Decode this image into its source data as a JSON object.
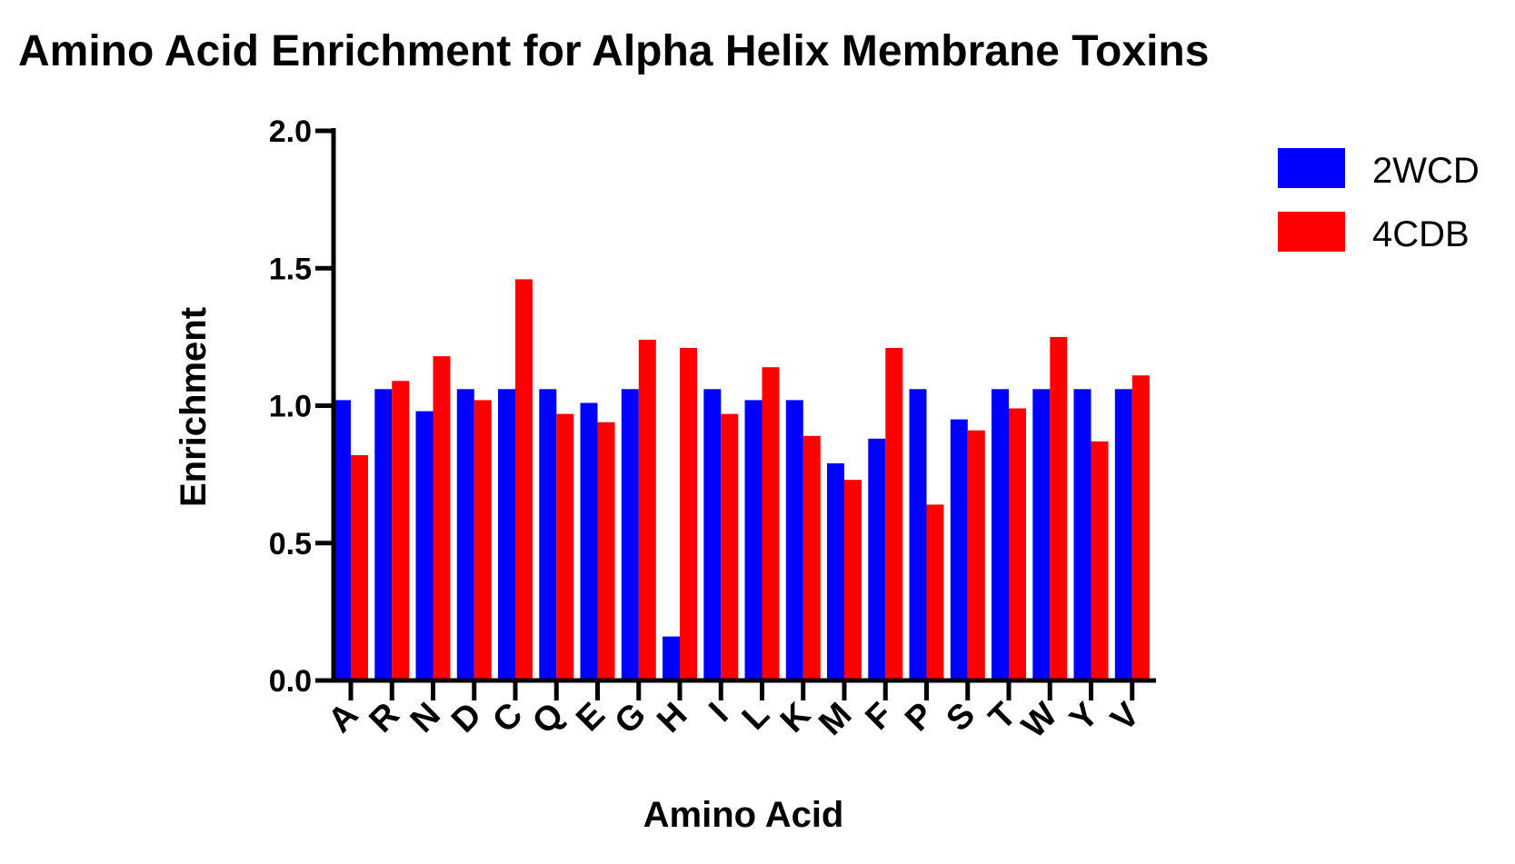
{
  "chart_data": {
    "type": "bar",
    "title": "Amino Acid Enrichment for Alpha Helix Membrane Toxins",
    "xlabel": "Amino Acid",
    "ylabel": "Enrichment",
    "ylim": [
      0,
      2.0
    ],
    "yticks": [
      "0.0",
      "0.5",
      "1.0",
      "1.5",
      "2.0"
    ],
    "categories": [
      "A",
      "R",
      "N",
      "D",
      "C",
      "Q",
      "E",
      "G",
      "H",
      "I",
      "L",
      "K",
      "M",
      "F",
      "P",
      "S",
      "T",
      "W",
      "Y",
      "V"
    ],
    "series": [
      {
        "name": "2WCD",
        "color": "#0000ff",
        "values": [
          1.02,
          1.06,
          0.98,
          1.06,
          1.06,
          1.06,
          1.01,
          1.06,
          0.16,
          1.06,
          1.02,
          1.02,
          0.79,
          0.88,
          1.06,
          0.95,
          1.06,
          1.06,
          1.06,
          1.06
        ]
      },
      {
        "name": "4CDB",
        "color": "#ff0000",
        "values": [
          0.82,
          1.09,
          1.18,
          1.02,
          1.46,
          0.97,
          0.94,
          1.24,
          1.21,
          0.97,
          1.14,
          0.89,
          0.73,
          1.21,
          0.64,
          0.91,
          0.99,
          1.25,
          0.87,
          1.11
        ]
      }
    ],
    "legend_position": "top-right",
    "grid": false
  }
}
